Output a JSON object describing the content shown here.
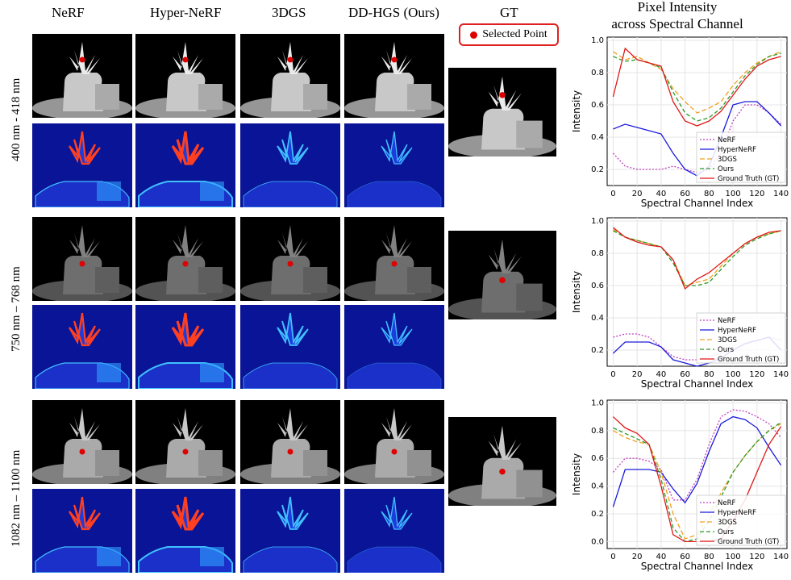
{
  "columns": {
    "nerf": "NeRF",
    "hypernerf": "Hyper-NeRF",
    "gs3d": "3DGS",
    "ours": "DD-HGS (Ours)",
    "gt": "GT"
  },
  "legend": {
    "selected_point": "Selected Point"
  },
  "plot_header": {
    "line1": "Pixel Intensity",
    "line2": "across Spectral Channel"
  },
  "rows": [
    {
      "label": "400 nm - 418 nm"
    },
    {
      "label": "750 nm – 768 nm"
    },
    {
      "label": "1082 nm – 1100 nm"
    }
  ],
  "colors": {
    "nerf": "#c040c0",
    "hypernerf": "#1a1adc",
    "gs3d": "#f0a020",
    "ours": "#2a9a2a",
    "gt": "#e01818",
    "point": "#e00000"
  },
  "chart_data": [
    {
      "type": "line",
      "xlabel": "Spectral Channel Index",
      "ylabel": "Intensity",
      "xlim": [
        -5,
        145
      ],
      "ylim": [
        0.1,
        1.02
      ],
      "xticks": [
        0,
        20,
        40,
        60,
        80,
        100,
        120,
        140
      ],
      "yticks": [
        0.2,
        0.4,
        0.6,
        0.8,
        1.0
      ],
      "ytick_labels": [
        "0.2",
        "0.4",
        "0.6",
        "0.8",
        "1.0"
      ],
      "grid": true,
      "legend_position": "lower-right",
      "x": [
        0,
        10,
        20,
        30,
        40,
        50,
        60,
        70,
        80,
        90,
        100,
        110,
        120,
        130,
        140
      ],
      "series": [
        {
          "name": "NeRF",
          "values": [
            0.3,
            0.22,
            0.2,
            0.2,
            0.2,
            0.22,
            0.2,
            0.18,
            0.2,
            0.3,
            0.5,
            0.6,
            0.6,
            0.55,
            0.48
          ]
        },
        {
          "name": "HyperNeRF",
          "values": [
            0.45,
            0.48,
            0.46,
            0.44,
            0.42,
            0.3,
            0.2,
            0.16,
            0.22,
            0.4,
            0.6,
            0.62,
            0.62,
            0.55,
            0.47
          ]
        },
        {
          "name": "3DGS",
          "values": [
            0.93,
            0.88,
            0.9,
            0.86,
            0.82,
            0.7,
            0.62,
            0.55,
            0.58,
            0.62,
            0.72,
            0.8,
            0.86,
            0.9,
            0.93
          ]
        },
        {
          "name": "Ours",
          "values": [
            0.9,
            0.87,
            0.88,
            0.86,
            0.83,
            0.68,
            0.55,
            0.5,
            0.52,
            0.58,
            0.68,
            0.78,
            0.85,
            0.9,
            0.92
          ]
        },
        {
          "name": "Ground Truth (GT)",
          "values": [
            0.65,
            0.95,
            0.88,
            0.86,
            0.84,
            0.62,
            0.5,
            0.47,
            0.5,
            0.56,
            0.66,
            0.76,
            0.84,
            0.88,
            0.9
          ]
        }
      ]
    },
    {
      "type": "line",
      "xlabel": "Spectral Channel Index",
      "ylabel": "Intensity",
      "xlim": [
        -5,
        145
      ],
      "ylim": [
        0.1,
        1.02
      ],
      "xticks": [
        0,
        20,
        40,
        60,
        80,
        100,
        120,
        140
      ],
      "yticks": [
        0.2,
        0.4,
        0.6,
        0.8,
        1.0
      ],
      "ytick_labels": [
        "0.2",
        "0.4",
        "0.6",
        "0.8",
        "1.0"
      ],
      "grid": true,
      "legend_position": "lower-right",
      "x": [
        0,
        10,
        20,
        30,
        40,
        50,
        60,
        70,
        80,
        90,
        100,
        110,
        120,
        130,
        140
      ],
      "series": [
        {
          "name": "NeRF",
          "values": [
            0.28,
            0.3,
            0.3,
            0.28,
            0.22,
            0.16,
            0.14,
            0.14,
            0.16,
            0.18,
            0.2,
            0.24,
            0.26,
            0.28,
            0.26
          ]
        },
        {
          "name": "HyperNeRF",
          "values": [
            0.18,
            0.25,
            0.25,
            0.25,
            0.22,
            0.14,
            0.12,
            0.1,
            0.12,
            0.15,
            0.2,
            0.24,
            0.26,
            0.28,
            0.2
          ]
        },
        {
          "name": "3DGS",
          "values": [
            0.95,
            0.9,
            0.88,
            0.86,
            0.84,
            0.76,
            0.6,
            0.62,
            0.64,
            0.72,
            0.8,
            0.86,
            0.9,
            0.92,
            0.94
          ]
        },
        {
          "name": "Ours",
          "values": [
            0.94,
            0.9,
            0.88,
            0.86,
            0.84,
            0.74,
            0.6,
            0.6,
            0.62,
            0.7,
            0.78,
            0.85,
            0.89,
            0.92,
            0.94
          ]
        },
        {
          "name": "Ground Truth (GT)",
          "values": [
            0.96,
            0.9,
            0.87,
            0.85,
            0.84,
            0.76,
            0.58,
            0.64,
            0.68,
            0.74,
            0.8,
            0.86,
            0.9,
            0.93,
            0.94
          ]
        }
      ]
    },
    {
      "type": "line",
      "xlabel": "Spectral Channel Index",
      "ylabel": "Intensity",
      "xlim": [
        -5,
        145
      ],
      "ylim": [
        -0.05,
        1.02
      ],
      "xticks": [
        0,
        20,
        40,
        60,
        80,
        100,
        120,
        140
      ],
      "yticks": [
        0.0,
        0.2,
        0.4,
        0.6,
        0.8,
        1.0
      ],
      "ytick_labels": [
        "0.0",
        "0.2",
        "0.4",
        "0.6",
        "0.8",
        "1.0"
      ],
      "grid": true,
      "legend_position": "lower-right",
      "x": [
        0,
        10,
        20,
        30,
        40,
        50,
        60,
        70,
        80,
        90,
        100,
        110,
        120,
        130,
        140
      ],
      "series": [
        {
          "name": "NeRF",
          "values": [
            0.5,
            0.6,
            0.6,
            0.58,
            0.52,
            0.3,
            0.3,
            0.45,
            0.7,
            0.9,
            0.95,
            0.94,
            0.9,
            0.85,
            0.75
          ]
        },
        {
          "name": "HyperNeRF",
          "values": [
            0.25,
            0.52,
            0.52,
            0.52,
            0.5,
            0.38,
            0.28,
            0.42,
            0.65,
            0.85,
            0.9,
            0.88,
            0.82,
            0.68,
            0.55
          ]
        },
        {
          "name": "3DGS",
          "values": [
            0.8,
            0.75,
            0.72,
            0.7,
            0.5,
            0.2,
            0.02,
            0.05,
            0.2,
            0.35,
            0.5,
            0.62,
            0.72,
            0.8,
            0.85
          ]
        },
        {
          "name": "Ours",
          "values": [
            0.82,
            0.78,
            0.74,
            0.7,
            0.45,
            0.1,
            0.0,
            0.02,
            0.15,
            0.32,
            0.5,
            0.62,
            0.72,
            0.8,
            0.86
          ]
        },
        {
          "name": "Ground Truth (GT)",
          "values": [
            0.9,
            0.82,
            0.78,
            0.7,
            0.4,
            0.05,
            0.0,
            0.0,
            0.0,
            0.02,
            0.15,
            0.3,
            0.5,
            0.7,
            0.83
          ]
        }
      ]
    }
  ]
}
